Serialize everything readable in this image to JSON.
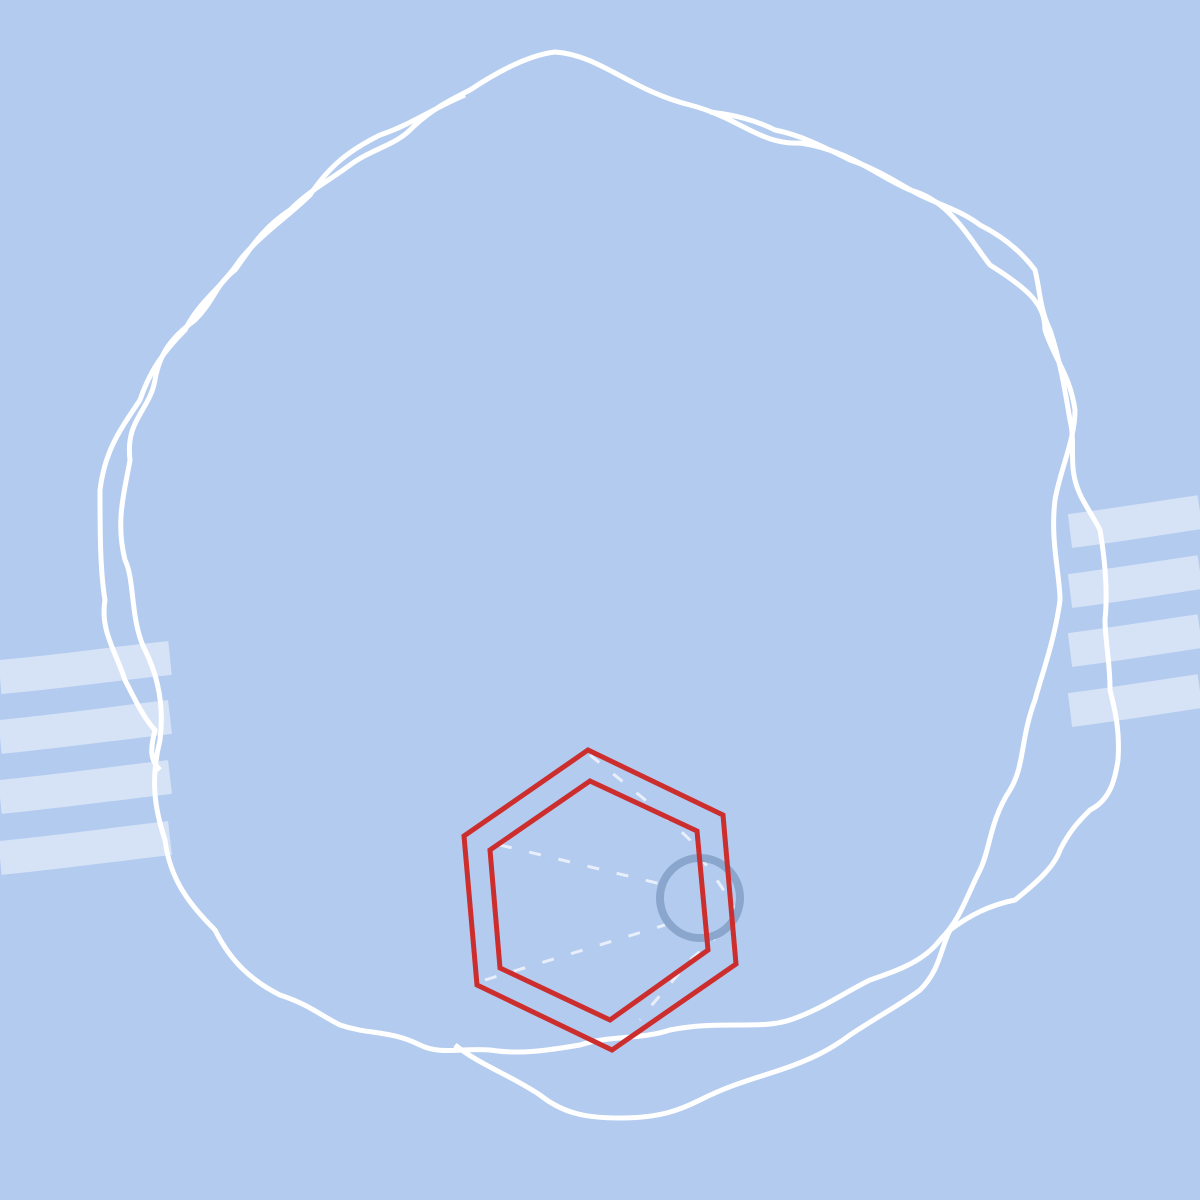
{
  "colors": {
    "background": "#b3cbef",
    "stripe": "#d6e3f7",
    "outline": "#ffffff",
    "hexagon": "#cc2e2e",
    "ring": "#8aa6cc",
    "dashed": "#e8effb"
  },
  "shapes": {
    "blobs": [
      "wavy-outline-primary",
      "wavy-outline-secondary"
    ],
    "hexagons": [
      "outer-hexagon",
      "inner-hexagon"
    ],
    "ring": "small-ring",
    "stripe_groups": [
      "left-stripes",
      "right-stripes"
    ]
  }
}
